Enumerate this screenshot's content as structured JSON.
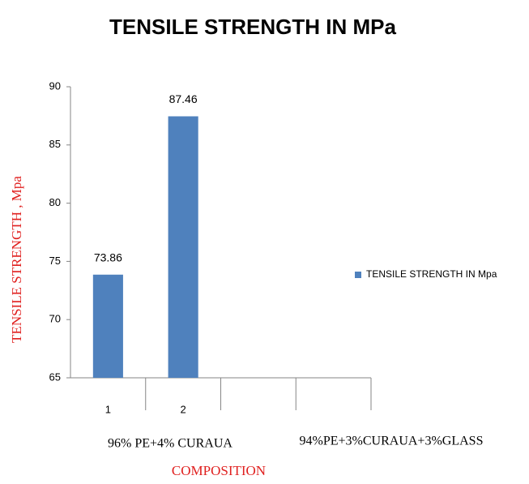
{
  "chart_data": {
    "type": "bar",
    "title": "TENSILE STRENGTH IN MPa",
    "y_label": "TENSILE STRENGTH , Mpa",
    "x_label": "COMPOSITION",
    "categories": [
      "1",
      "2",
      null,
      null
    ],
    "category_groups": [
      "96% PE+4% CURAUA",
      "94%PE+3%CURAUA+3%GLASS"
    ],
    "series": [
      {
        "name": "TENSILE STRENGTH  IN Mpa",
        "color": "#4f81bd",
        "values": [
          73.86,
          87.46,
          null,
          null
        ]
      }
    ],
    "ylim": [
      65,
      90
    ],
    "yticks": [
      65,
      70,
      75,
      80,
      85,
      90
    ],
    "legend": "right",
    "grid": false
  }
}
